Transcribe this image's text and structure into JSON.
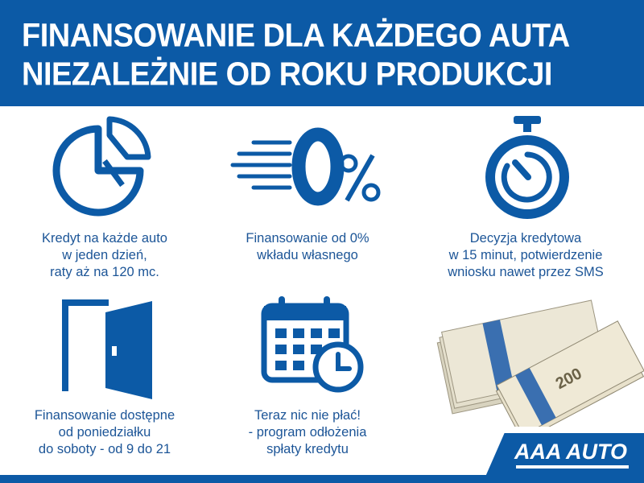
{
  "header": {
    "line1": "FINANSOWANIE DLA KAŻDEGO AUTA",
    "line2": "NIEZALEŻNIE OD ROKU PRODUKCJI"
  },
  "features": [
    {
      "icon": "pie-chart-icon",
      "lines": [
        "Kredyt na każde auto",
        "w jeden dzień,",
        "raty aż na 120 mc."
      ]
    },
    {
      "icon": "zero-percent-icon",
      "lines": [
        "Finansowanie od 0%",
        "wkładu własnego"
      ]
    },
    {
      "icon": "stopwatch-icon",
      "lines": [
        "Decyzja kredytowa",
        "w 15 minut, potwierdzenie",
        "wniosku nawet przez SMS"
      ]
    },
    {
      "icon": "door-icon",
      "lines": [
        "Finansowanie dostępne",
        "od poniedziałku",
        "do soboty - od 9 do 21"
      ]
    },
    {
      "icon": "calendar-clock-icon",
      "lines": [
        "Teraz nic nie płać!",
        "- program odłożenia",
        "spłaty kredytu"
      ]
    }
  ],
  "logo": {
    "text": "AAA AUTO"
  },
  "colors": {
    "brand_blue": "#0c5aa6",
    "text_blue": "#1c5597"
  }
}
